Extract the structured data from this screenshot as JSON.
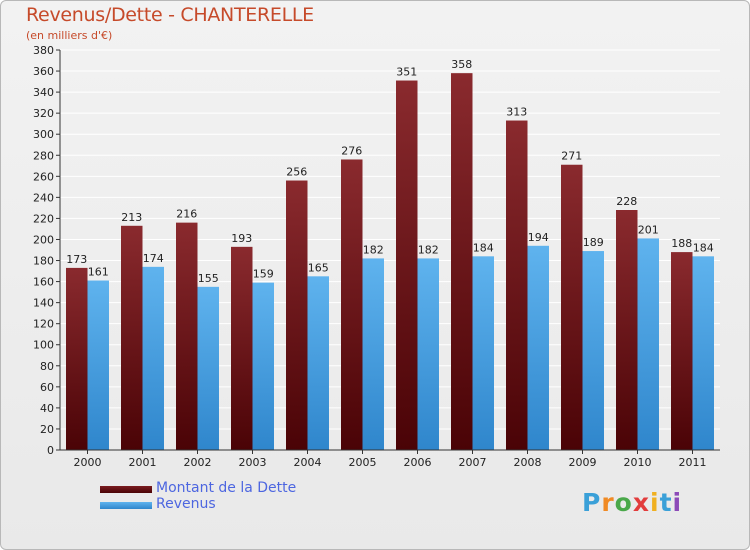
{
  "header": {
    "title": "Revenus/Dette - CHANTERELLE",
    "subtitle": "(en milliers d'€)"
  },
  "legend": {
    "debt_label": "Montant de la Dette",
    "revenue_label": "Revenus"
  },
  "logo": {
    "text": "Proxiti"
  },
  "colors": {
    "debt_top": "#8a2a2e",
    "debt_bottom": "#4a0306",
    "revenue_top": "#5fb3ee",
    "revenue_bottom": "#2f86cc",
    "title": "#c64a2a",
    "legend_text": "#4d66e0"
  },
  "chart_data": {
    "type": "bar",
    "categories": [
      "2000",
      "2001",
      "2002",
      "2003",
      "2004",
      "2005",
      "2006",
      "2007",
      "2008",
      "2009",
      "2010",
      "2011"
    ],
    "series": [
      {
        "name": "Montant de la Dette",
        "values": [
          173,
          213,
          216,
          193,
          256,
          276,
          351,
          358,
          313,
          271,
          228,
          188
        ]
      },
      {
        "name": "Revenus",
        "values": [
          161,
          174,
          155,
          159,
          165,
          182,
          182,
          184,
          194,
          189,
          201,
          184
        ]
      }
    ],
    "title": "Revenus/Dette - CHANTERELLE",
    "ylabel": "(en milliers d'€)",
    "ylim": [
      0,
      380
    ],
    "ytick_step": 20,
    "grid": true,
    "data_labels": true,
    "legend_position": "bottom-left"
  }
}
